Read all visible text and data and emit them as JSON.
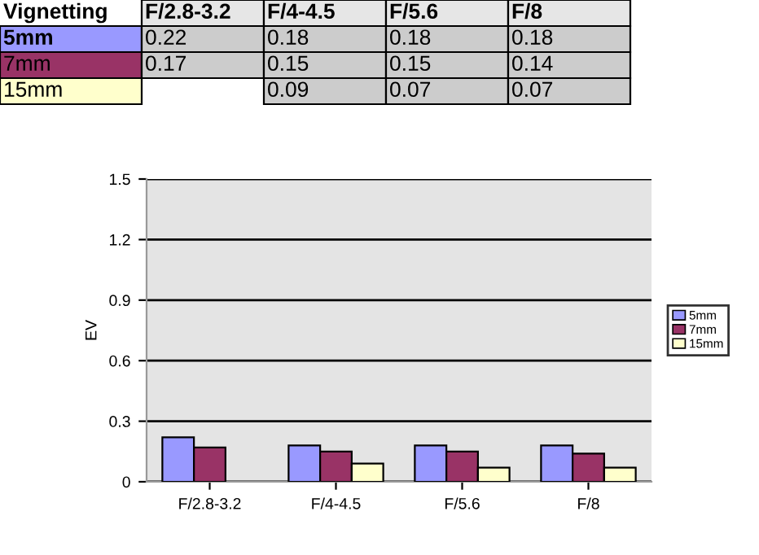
{
  "chart_data": {
    "type": "bar",
    "title": "Vignetting",
    "ylabel": "EV",
    "categories": [
      "F/2.8-3.2",
      "F/4-4.5",
      "F/5.6",
      "F/8"
    ],
    "series": [
      {
        "name": "5mm",
        "color": "#9999ff",
        "values": [
          0.22,
          0.18,
          0.18,
          0.18
        ]
      },
      {
        "name": "7mm",
        "color": "#993366",
        "values": [
          0.17,
          0.15,
          0.15,
          0.14
        ]
      },
      {
        "name": "15mm",
        "color": "#ffffcc",
        "values": [
          null,
          0.09,
          0.07,
          0.07
        ]
      }
    ],
    "ylim": [
      0,
      1.5
    ],
    "yticks": [
      0,
      0.3,
      0.6,
      0.9,
      1.2,
      1.5
    ],
    "grid": "y",
    "legend": "right",
    "data_labels": true
  }
}
